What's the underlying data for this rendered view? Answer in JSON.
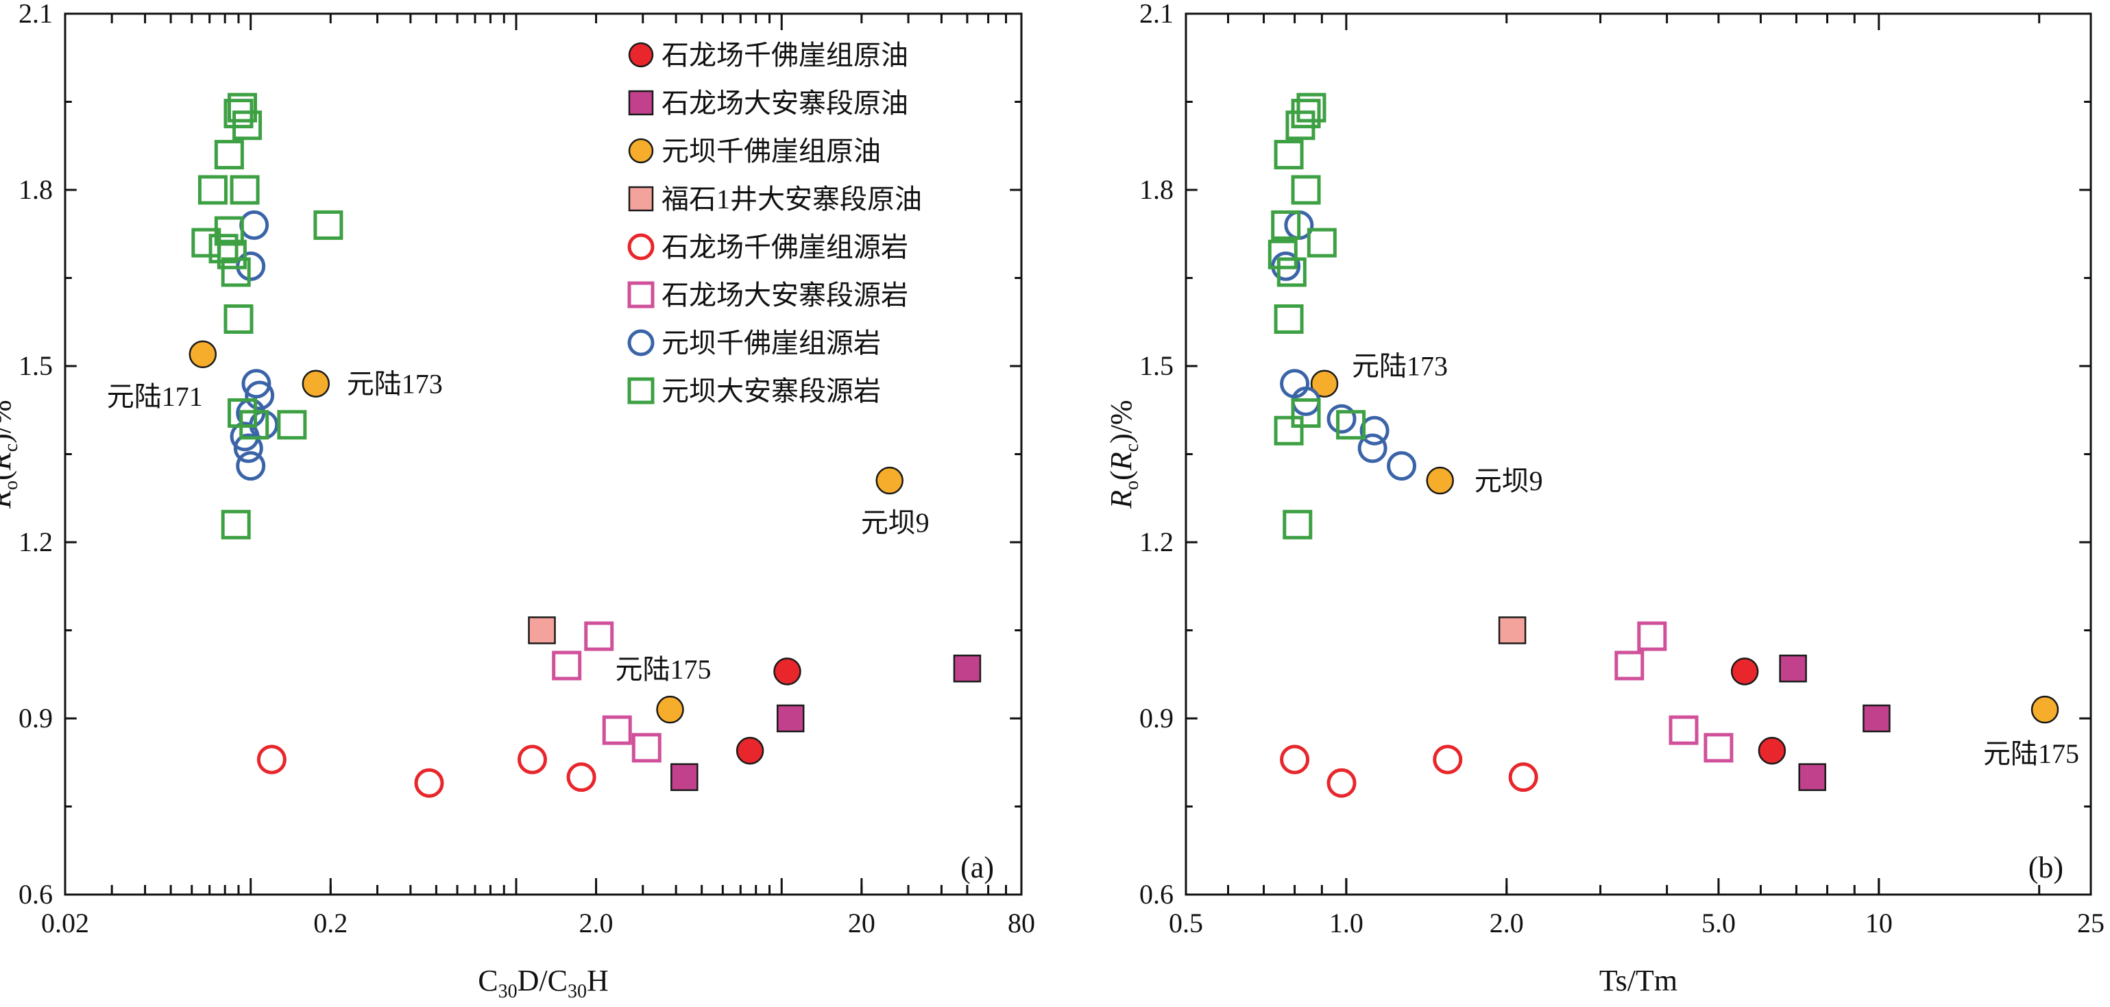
{
  "chart_data": [
    {
      "type": "scatter",
      "panel_label": "(a)",
      "x_scale": "log",
      "xlim": [
        0.02,
        80
      ],
      "ylim": [
        0.6,
        2.1
      ],
      "x_ticks": [
        "0.02",
        "0.2",
        "2.0",
        "20",
        "80"
      ],
      "x_tick_values": [
        0.02,
        0.2,
        2.0,
        20,
        80
      ],
      "y_ticks": [
        "0.6",
        "0.9",
        "1.2",
        "1.5",
        "1.8",
        "2.1"
      ],
      "y_tick_values": [
        0.6,
        0.9,
        1.2,
        1.5,
        1.8,
        2.1
      ],
      "xlabel": {
        "main": "C",
        "sub1": "30",
        "mid": "D/C",
        "sub2": "30",
        "tail": "H"
      },
      "ylabel": {
        "r1": "R",
        "s1": "o",
        "open": "(",
        "r2": "R",
        "s2": "c",
        "close": ")/%"
      },
      "legend_placement": "top-right",
      "series": [
        {
          "name": "石龙场千佛崖组原油",
          "marker": "circle",
          "filled": true,
          "color": "#e8262b",
          "points": [
            [
              10.5,
              0.98
            ],
            [
              7.6,
              0.845
            ]
          ]
        },
        {
          "name": "石龙场大安寨段原油",
          "marker": "square",
          "filled": true,
          "color": "#c2418d",
          "points": [
            [
              10.8,
              0.9
            ],
            [
              4.3,
              0.8
            ],
            [
              50,
              0.985
            ]
          ]
        },
        {
          "name": "元坝千佛崖组原油",
          "marker": "circle",
          "filled": true,
          "color": "#f7ad2c",
          "points": [
            [
              0.066,
              1.52
            ],
            [
              0.176,
              1.47
            ],
            [
              25.5,
              1.305
            ],
            [
              3.8,
              0.915
            ]
          ]
        },
        {
          "name": "福石1井大安寨段原油",
          "marker": "square",
          "filled": true,
          "color": "#f4a39c",
          "points": [
            [
              1.25,
              1.05
            ]
          ]
        },
        {
          "name": "石龙场千佛崖组源岩",
          "marker": "circle",
          "filled": false,
          "color": "#e8262b",
          "points": [
            [
              0.12,
              0.83
            ],
            [
              0.47,
              0.79
            ],
            [
              1.15,
              0.83
            ],
            [
              1.76,
              0.8
            ]
          ]
        },
        {
          "name": "石龙场大安寨段源岩",
          "marker": "square",
          "filled": false,
          "color": "#d0509a",
          "points": [
            [
              1.55,
              0.99
            ],
            [
              2.05,
              1.04
            ],
            [
              2.4,
              0.88
            ],
            [
              3.1,
              0.85
            ]
          ]
        },
        {
          "name": "元坝千佛崖组源岩",
          "marker": "circle",
          "filled": false,
          "color": "#3b64a8",
          "points": [
            [
              0.103,
              1.74
            ],
            [
              0.1,
              1.67
            ],
            [
              0.105,
              1.47
            ],
            [
              0.108,
              1.45
            ],
            [
              0.1,
              1.42
            ],
            [
              0.112,
              1.4
            ],
            [
              0.095,
              1.38
            ],
            [
              0.098,
              1.36
            ],
            [
              0.1,
              1.33
            ]
          ]
        },
        {
          "name": "元坝大安寨段源岩",
          "marker": "square",
          "filled": false,
          "color": "#3da043",
          "points": [
            [
              0.093,
              1.94
            ],
            [
              0.09,
              1.93
            ],
            [
              0.097,
              1.91
            ],
            [
              0.083,
              1.86
            ],
            [
              0.072,
              1.8
            ],
            [
              0.095,
              1.8
            ],
            [
              0.083,
              1.73
            ],
            [
              0.068,
              1.71
            ],
            [
              0.079,
              1.7
            ],
            [
              0.085,
              1.69
            ],
            [
              0.088,
              1.66
            ],
            [
              0.09,
              1.58
            ],
            [
              0.093,
              1.42
            ],
            [
              0.103,
              1.4
            ],
            [
              0.143,
              1.4
            ],
            [
              0.088,
              1.23
            ],
            [
              0.196,
              1.74
            ]
          ]
        }
      ],
      "annotations": [
        {
          "text": "元陆171",
          "x": 0.066,
          "y": 1.52,
          "anchor": "end",
          "dx": 0,
          "dy": 75
        },
        {
          "text": "元陆173",
          "x": 0.176,
          "y": 1.47,
          "anchor": "start",
          "dx": 45,
          "dy": 14
        },
        {
          "text": "元坝9",
          "x": 25.5,
          "y": 1.305,
          "anchor": "middle",
          "dx": 8,
          "dy": 75
        },
        {
          "text": "元陆175",
          "x": 3.8,
          "y": 0.915,
          "anchor": "middle",
          "dx": -10,
          "dy": -45
        }
      ]
    },
    {
      "type": "scatter",
      "panel_label": "(b)",
      "x_scale": "log",
      "xlim": [
        0.5,
        25
      ],
      "ylim": [
        0.6,
        2.1
      ],
      "x_ticks": [
        "0.5",
        "1.0",
        "2.0",
        "5.0",
        "10",
        "25"
      ],
      "x_tick_values": [
        0.5,
        1.0,
        2.0,
        5.0,
        10,
        25
      ],
      "y_ticks": [
        "0.6",
        "0.9",
        "1.2",
        "1.5",
        "1.8",
        "2.1"
      ],
      "y_tick_values": [
        0.6,
        0.9,
        1.2,
        1.5,
        1.8,
        2.1
      ],
      "xlabel": {
        "main": "Ts/Tm"
      },
      "ylabel": {
        "r1": "R",
        "s1": "o",
        "open": "(",
        "r2": "R",
        "s2": "c",
        "close": ")/%"
      },
      "series": [
        {
          "name": "石龙场千佛崖组原油",
          "marker": "circle",
          "filled": true,
          "color": "#e8262b",
          "points": [
            [
              5.6,
              0.98
            ],
            [
              6.3,
              0.845
            ]
          ]
        },
        {
          "name": "石龙场大安寨段原油",
          "marker": "square",
          "filled": true,
          "color": "#c2418d",
          "points": [
            [
              6.9,
              0.985
            ],
            [
              9.9,
              0.9
            ],
            [
              7.5,
              0.8
            ]
          ]
        },
        {
          "name": "元坝千佛崖组原油",
          "marker": "circle",
          "filled": true,
          "color": "#f7ad2c",
          "points": [
            [
              0.91,
              1.47
            ],
            [
              1.5,
              1.305
            ],
            [
              20.5,
              0.915
            ]
          ]
        },
        {
          "name": "福石1井大安寨段原油",
          "marker": "square",
          "filled": true,
          "color": "#f4a39c",
          "points": [
            [
              2.05,
              1.05
            ]
          ]
        },
        {
          "name": "石龙场千佛崖组源岩",
          "marker": "circle",
          "filled": false,
          "color": "#e8262b",
          "points": [
            [
              0.8,
              0.83
            ],
            [
              0.98,
              0.79
            ],
            [
              1.55,
              0.83
            ],
            [
              2.15,
              0.8
            ]
          ]
        },
        {
          "name": "石龙场大安寨段源岩",
          "marker": "square",
          "filled": false,
          "color": "#d0509a",
          "points": [
            [
              3.4,
              0.99
            ],
            [
              3.75,
              1.04
            ],
            [
              4.3,
              0.88
            ],
            [
              5.0,
              0.85
            ]
          ]
        },
        {
          "name": "元坝千佛崖组源岩",
          "marker": "circle",
          "filled": false,
          "color": "#3b64a8",
          "points": [
            [
              0.815,
              1.74
            ],
            [
              0.77,
              1.67
            ],
            [
              0.8,
              1.47
            ],
            [
              0.84,
              1.44
            ],
            [
              0.98,
              1.41
            ],
            [
              1.13,
              1.39
            ],
            [
              1.12,
              1.36
            ],
            [
              1.27,
              1.33
            ]
          ]
        },
        {
          "name": "元坝大安寨段源岩",
          "marker": "square",
          "filled": false,
          "color": "#3da043",
          "points": [
            [
              0.86,
              1.94
            ],
            [
              0.84,
              1.93
            ],
            [
              0.82,
              1.91
            ],
            [
              0.78,
              1.86
            ],
            [
              0.84,
              1.8
            ],
            [
              0.77,
              1.74
            ],
            [
              0.9,
              1.71
            ],
            [
              0.76,
              1.69
            ],
            [
              0.79,
              1.66
            ],
            [
              0.78,
              1.58
            ],
            [
              0.84,
              1.42
            ],
            [
              0.78,
              1.39
            ],
            [
              1.02,
              1.4
            ],
            [
              0.81,
              1.23
            ]
          ]
        }
      ],
      "annotations": [
        {
          "text": "元陆173",
          "x": 0.91,
          "y": 1.47,
          "anchor": "start",
          "dx": 40,
          "dy": -12
        },
        {
          "text": "元坝9",
          "x": 1.5,
          "y": 1.305,
          "anchor": "start",
          "dx": 50,
          "dy": 14
        },
        {
          "text": "元陆175",
          "x": 20.5,
          "y": 0.915,
          "anchor": "middle",
          "dx": -20,
          "dy": 78
        }
      ]
    }
  ]
}
